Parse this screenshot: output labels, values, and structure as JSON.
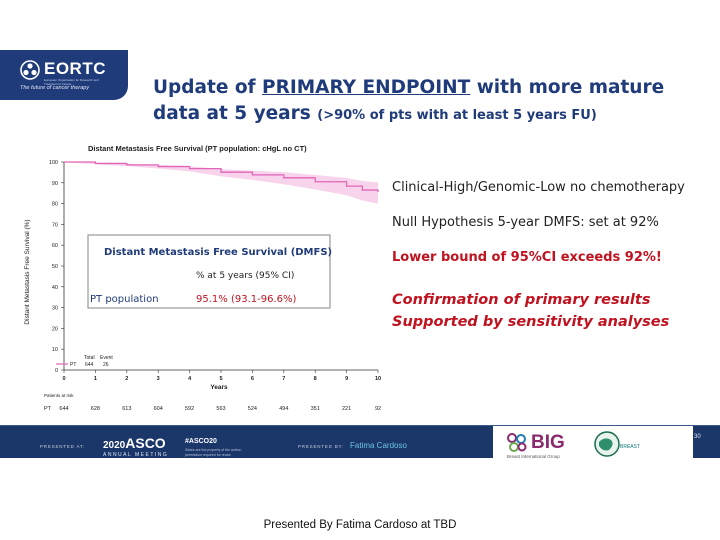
{
  "logo": {
    "name": "EORTC",
    "subtitle": "European Organisation for Research and Treatment of Cancer",
    "tagline": "The future of cancer therapy"
  },
  "title": {
    "line1_prefix": "Update of ",
    "line1_underlined": "PRIMARY ENDPOINT",
    "line1_suffix": " with more mature",
    "line2_main": "data at 5 years ",
    "line2_sub": "(>90% of pts with at least 5 years FU)"
  },
  "chart_data": {
    "type": "line",
    "title": "Distant Metastasis Free Survival (PT population: cHgL no CT)",
    "xlabel": "Years",
    "ylabel": "Distant Metastasis Free Survival (%)",
    "xlim": [
      0,
      10
    ],
    "ylim": [
      0,
      100
    ],
    "xticks": [
      "0",
      "1",
      "2",
      "3",
      "4",
      "5",
      "6",
      "7",
      "8",
      "9",
      "10"
    ],
    "yticks": [
      "0",
      "10",
      "20",
      "30",
      "40",
      "50",
      "60",
      "70",
      "80",
      "90",
      "100"
    ],
    "series": [
      {
        "name": "PT",
        "color": "#e066b8",
        "ci_color": "#f5c4e6",
        "x": [
          0,
          1,
          2,
          3,
          4,
          5,
          6,
          7,
          8,
          9,
          9.5,
          10
        ],
        "y": [
          100,
          99.3,
          98.6,
          97.8,
          96.8,
          95.1,
          93.8,
          92.4,
          90.5,
          88.4,
          86.5,
          85.5
        ],
        "ci_low": [
          100,
          98.9,
          98.0,
          96.9,
          95.5,
          93.1,
          91.4,
          89.3,
          86.8,
          84.0,
          81.5,
          80.0
        ],
        "ci_high": [
          100,
          99.7,
          99.2,
          98.6,
          98.0,
          96.6,
          95.8,
          95.1,
          93.8,
          92.3,
          90.9,
          90.2
        ]
      }
    ],
    "legend": {
      "header_total": "Total",
      "header_event": "Event",
      "entry_name": "PT",
      "total": "644",
      "events": "26"
    },
    "risk_table": {
      "label": "Patients at risk",
      "row_label": "PT",
      "values": [
        "644",
        "628",
        "613",
        "604",
        "592",
        "563",
        "524",
        "494",
        "351",
        "221",
        "92"
      ]
    },
    "inset": {
      "heading": "Distant Metastasis Free Survival (DMFS)",
      "column_header": "% at 5 years (95% CI)",
      "row_label": "PT population",
      "row_value": "95.1% (93.1-96.6%)"
    }
  },
  "notes": {
    "line1": "Clinical-High/Genomic-Low no chemotherapy",
    "line2": "Null Hypothesis 5-year DMFS: set at 92%",
    "line3": "Lower bound of 95%CI exceeds 92%!",
    "line4a": "Confirmation of primary results",
    "line4b": "Supported by sensitivity analyses"
  },
  "banner": {
    "presented_at": "PRESENTED AT:",
    "asco_year": "2020",
    "asco_word": "ASCO",
    "annual_meeting": "ANNUAL MEETING",
    "hashtag": "#ASCO20",
    "slides_note": "Slides are the property of the author, permission required for reuse.",
    "presented_by": "PRESENTED BY:",
    "presenter": "Fatima Cardoso",
    "big_name": "BIG",
    "big_sub": "Breast International Group",
    "breast_word": "BREAST",
    "page": "30"
  },
  "caption": "Presented By Fatima Cardoso at TBD"
}
